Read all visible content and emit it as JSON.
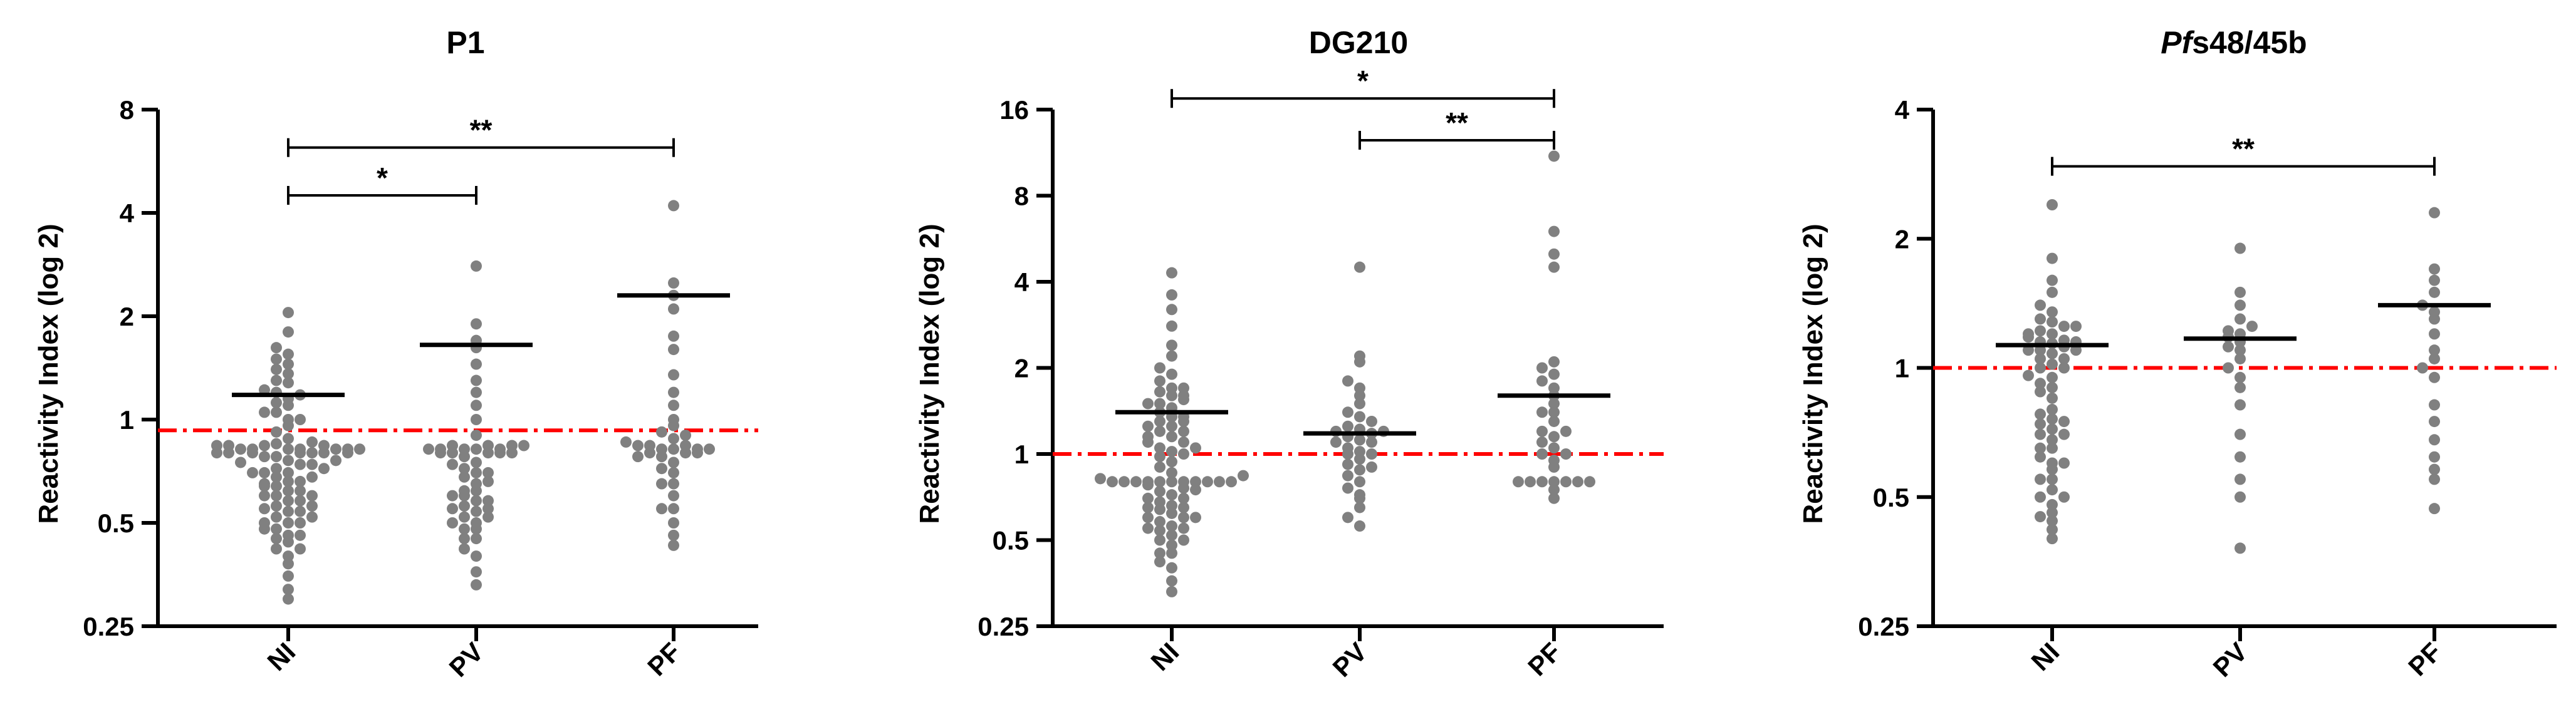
{
  "chart_data": [
    {
      "type": "scatter",
      "title": "P1",
      "ylabel": "Reactivity Index (log 2)",
      "y_scale": "log2",
      "ylim": [
        0.25,
        8
      ],
      "yticks": [
        0.25,
        0.5,
        1,
        2,
        4,
        8
      ],
      "ytick_labels": [
        "0.25",
        "0.5",
        "1",
        "2",
        "4",
        "8"
      ],
      "categories": [
        "NI",
        "PV",
        "PF"
      ],
      "cutoff": 0.93,
      "cutoff_color": "#ff0000",
      "point_color": "#808080",
      "series": [
        {
          "name": "NI",
          "mean": 1.18,
          "values": [
            0.3,
            0.32,
            0.35,
            0.38,
            0.4,
            0.42,
            0.44,
            0.46,
            0.48,
            0.5,
            0.52,
            0.54,
            0.56,
            0.58,
            0.6,
            0.62,
            0.64,
            0.66,
            0.68,
            0.7,
            0.72,
            0.74,
            0.76,
            0.78,
            0.8,
            0.82,
            0.85,
            0.88,
            0.92,
            0.96,
            1.0,
            1.05,
            1.1,
            1.15,
            1.2,
            1.28,
            1.36,
            1.45,
            1.55,
            1.62,
            1.8,
            2.05,
            0.42,
            0.46,
            0.5,
            0.54,
            0.58,
            0.62,
            0.66,
            0.7,
            0.74,
            0.78,
            0.8,
            0.82,
            0.84,
            0.86,
            0.8,
            0.82,
            0.84,
            0.8,
            0.82,
            0.55,
            0.6,
            0.65,
            0.7,
            0.75,
            0.45,
            0.5,
            0.48,
            0.52,
            0.56,
            0.6,
            0.64,
            0.68,
            0.72,
            0.76,
            0.8,
            0.82,
            0.84,
            0.8,
            0.82,
            0.84,
            0.82,
            0.8,
            1.0,
            1.05,
            1.12,
            1.18,
            1.22,
            1.3,
            1.4,
            1.5
          ]
        },
        {
          "name": "PV",
          "mean": 1.65,
          "values": [
            0.33,
            0.36,
            0.4,
            0.42,
            0.45,
            0.48,
            0.5,
            0.52,
            0.54,
            0.56,
            0.58,
            0.6,
            0.62,
            0.65,
            0.68,
            0.7,
            0.72,
            0.75,
            0.78,
            0.8,
            0.8,
            0.82,
            0.82,
            0.84,
            0.84,
            0.8,
            0.82,
            0.8,
            0.82,
            0.84,
            0.9,
            1.0,
            1.1,
            1.2,
            1.3,
            1.45,
            1.62,
            1.7,
            1.9,
            2.8,
            0.45,
            0.48,
            0.52,
            0.55,
            0.58,
            0.62,
            0.66,
            0.7,
            0.74,
            0.5,
            0.55,
            0.6,
            0.8,
            0.82,
            0.84
          ]
        },
        {
          "name": "PF",
          "mean": 2.3,
          "values": [
            0.43,
            0.46,
            0.5,
            0.55,
            0.6,
            0.65,
            0.7,
            0.75,
            0.78,
            0.8,
            0.8,
            0.82,
            0.82,
            0.84,
            0.84,
            0.8,
            0.82,
            0.84,
            0.88,
            0.92,
            0.96,
            1.0,
            1.1,
            1.2,
            1.35,
            1.6,
            1.75,
            2.1,
            2.3,
            2.5,
            4.2,
            0.55,
            0.65,
            0.72,
            0.78,
            0.82,
            0.86,
            0.9
          ]
        }
      ],
      "significance": [
        {
          "from": "NI",
          "to": "PV",
          "label": "*",
          "y": 4.5
        },
        {
          "from": "NI",
          "to": "PF",
          "label": "**",
          "y": 6.2
        }
      ]
    },
    {
      "type": "scatter",
      "title": "DG210",
      "ylabel": "Reactivity Index (log 2)",
      "y_scale": "log2",
      "ylim": [
        0.25,
        16
      ],
      "yticks": [
        0.25,
        0.5,
        1,
        2,
        4,
        8,
        16
      ],
      "ytick_labels": [
        "0.25",
        "0.5",
        "1",
        "2",
        "4",
        "8",
        "16"
      ],
      "categories": [
        "NI",
        "PV",
        "PF"
      ],
      "cutoff": 1.0,
      "cutoff_color": "#ff0000",
      "point_color": "#808080",
      "series": [
        {
          "name": "NI",
          "mean": 1.4,
          "values": [
            0.33,
            0.36,
            0.4,
            0.42,
            0.45,
            0.48,
            0.5,
            0.52,
            0.54,
            0.56,
            0.58,
            0.6,
            0.62,
            0.64,
            0.66,
            0.68,
            0.7,
            0.72,
            0.74,
            0.76,
            0.78,
            0.8,
            0.8,
            0.8,
            0.8,
            0.8,
            0.8,
            0.8,
            0.8,
            0.8,
            0.8,
            0.8,
            0.82,
            0.84,
            0.86,
            0.9,
            0.94,
            0.98,
            1.0,
            1.02,
            1.05,
            1.1,
            1.15,
            1.2,
            1.25,
            1.3,
            1.35,
            1.4,
            1.45,
            1.5,
            1.55,
            1.6,
            1.65,
            1.7,
            1.8,
            1.9,
            2.0,
            2.2,
            2.4,
            2.8,
            3.2,
            3.6,
            4.3,
            0.55,
            0.6,
            0.65,
            0.7,
            0.75,
            1.1,
            1.2,
            1.3,
            1.5,
            1.6,
            1.7,
            0.45,
            0.5,
            0.55,
            0.6,
            0.65,
            1.05,
            1.15,
            1.25,
            1.35
          ]
        },
        {
          "name": "PV",
          "mean": 1.18,
          "values": [
            0.56,
            0.6,
            0.65,
            0.7,
            0.72,
            0.76,
            0.8,
            0.84,
            0.88,
            0.92,
            0.96,
            1.0,
            1.02,
            1.05,
            1.1,
            1.12,
            1.15,
            1.18,
            1.2,
            1.22,
            1.25,
            1.3,
            1.35,
            1.4,
            1.5,
            1.6,
            1.7,
            1.8,
            2.1,
            2.2,
            4.5,
            0.9,
            1.0,
            1.1,
            1.2
          ]
        },
        {
          "name": "PF",
          "mean": 1.6,
          "values": [
            0.7,
            0.75,
            0.8,
            0.8,
            0.8,
            0.8,
            0.8,
            0.8,
            0.8,
            0.9,
            0.95,
            1.0,
            1.05,
            1.1,
            1.15,
            1.2,
            1.3,
            1.4,
            1.5,
            1.6,
            1.7,
            1.8,
            1.9,
            2.0,
            2.1,
            4.5,
            5.0,
            6.0,
            11.0,
            1.0,
            1.2,
            1.4
          ]
        }
      ],
      "significance": [
        {
          "from": "NI",
          "to": "PF",
          "label": "*",
          "y": 17.5
        },
        {
          "from": "PV",
          "to": "PF",
          "label": "**",
          "y": 12.5
        }
      ]
    },
    {
      "type": "scatter",
      "title_italic": "Pf",
      "title_rest": "s48/45b",
      "ylabel": "Reactivity Index (log 2)",
      "y_scale": "log2",
      "ylim": [
        0.25,
        4
      ],
      "yticks": [
        0.25,
        0.5,
        1,
        2,
        4
      ],
      "ytick_labels": [
        "0.25",
        "0.5",
        "1",
        "2",
        "4"
      ],
      "categories": [
        "NI",
        "PV",
        "PF"
      ],
      "cutoff": 1.0,
      "cutoff_color": "#ff0000",
      "point_color": "#808080",
      "series": [
        {
          "name": "NI",
          "mean": 1.13,
          "values": [
            0.4,
            0.42,
            0.44,
            0.46,
            0.48,
            0.5,
            0.52,
            0.55,
            0.58,
            0.6,
            0.62,
            0.65,
            0.68,
            0.7,
            0.72,
            0.74,
            0.76,
            0.78,
            0.8,
            0.85,
            0.9,
            0.95,
            1.0,
            1.02,
            1.05,
            1.08,
            1.1,
            1.12,
            1.14,
            1.15,
            1.16,
            1.18,
            1.2,
            1.22,
            1.25,
            1.28,
            1.3,
            1.35,
            1.4,
            1.5,
            1.6,
            1.8,
            2.4,
            0.45,
            0.5,
            0.55,
            0.6,
            0.65,
            0.7,
            0.75,
            1.0,
            1.05,
            1.1,
            1.15,
            1.2,
            1.25,
            0.92,
            0.96,
            0.88,
            1.1
          ]
        },
        {
          "name": "PV",
          "mean": 1.17,
          "values": [
            0.38,
            0.5,
            0.55,
            0.62,
            0.7,
            0.82,
            0.9,
            0.95,
            1.0,
            1.05,
            1.1,
            1.12,
            1.15,
            1.18,
            1.2,
            1.22,
            1.25,
            1.3,
            1.4,
            1.5,
            1.9
          ]
        },
        {
          "name": "PF",
          "mean": 1.4,
          "values": [
            0.47,
            0.55,
            0.58,
            0.62,
            0.68,
            0.75,
            0.82,
            0.95,
            1.0,
            1.05,
            1.1,
            1.2,
            1.3,
            1.35,
            1.4,
            1.5,
            1.6,
            1.7,
            2.3
          ]
        }
      ],
      "significance": [
        {
          "from": "NI",
          "to": "PF",
          "label": "**",
          "y": 2.95
        }
      ]
    }
  ]
}
